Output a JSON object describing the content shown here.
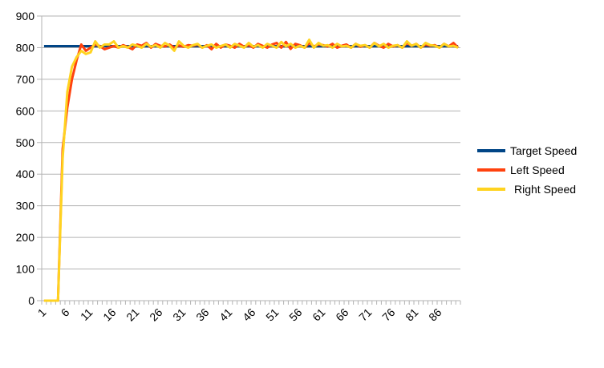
{
  "chart_data": {
    "type": "line",
    "title": "",
    "xlabel": "",
    "ylabel": "",
    "x_start": 1,
    "x_end": 90,
    "x_tick_labels": [
      "1",
      "6",
      "11",
      "16",
      "21",
      "26",
      "31",
      "36",
      "41",
      "46",
      "51",
      "56",
      "61",
      "66",
      "71",
      "76",
      "81",
      "86"
    ],
    "ylim": [
      0,
      900
    ],
    "y_tick_labels": [
      "0",
      "100",
      "200",
      "300",
      "400",
      "500",
      "600",
      "700",
      "800",
      "900"
    ],
    "grid": "horizontal",
    "legend": "right",
    "series": [
      {
        "name": "Target Speed",
        "color": "#004586",
        "values": [
          805,
          805,
          805,
          805,
          805,
          805,
          805,
          805,
          805,
          805,
          805,
          805,
          805,
          805,
          805,
          805,
          805,
          805,
          805,
          805,
          805,
          805,
          805,
          805,
          805,
          805,
          805,
          805,
          805,
          805,
          805,
          805,
          805,
          805,
          805,
          805,
          805,
          805,
          805,
          805,
          805,
          805,
          805,
          805,
          805,
          805,
          805,
          805,
          805,
          805,
          805,
          805,
          805,
          805,
          805,
          805,
          805,
          805,
          805,
          805,
          805,
          805,
          805,
          805,
          805,
          805,
          805,
          805,
          805,
          805,
          805,
          805,
          805,
          805,
          805,
          805,
          805,
          805,
          805,
          805,
          805,
          805,
          805,
          805,
          805,
          805,
          805,
          805,
          805,
          805
        ]
      },
      {
        "name": "Left Speed",
        "color": "#ff420e",
        "values": [
          0,
          0,
          0,
          0,
          480,
          610,
          700,
          760,
          810,
          790,
          800,
          810,
          805,
          795,
          800,
          805,
          800,
          808,
          802,
          795,
          810,
          806,
          815,
          800,
          812,
          806,
          804,
          810,
          800,
          807,
          803,
          808,
          806,
          810,
          800,
          808,
          795,
          812,
          800,
          810,
          806,
          800,
          812,
          803,
          808,
          800,
          812,
          806,
          800,
          810,
          815,
          800,
          818,
          796,
          812,
          808,
          800,
          815,
          804,
          810,
          808,
          804,
          812,
          800,
          806,
          810,
          800,
          812,
          803,
          808,
          800,
          815,
          806,
          800,
          812,
          804,
          808,
          800,
          815,
          806,
          812,
          800,
          810,
          806,
          808,
          800,
          812,
          804,
          815,
          800
        ]
      },
      {
        "name": "Right Speed",
        "color": "#ffd320",
        "values": [
          0,
          0,
          0,
          0,
          450,
          660,
          740,
          770,
          790,
          780,
          785,
          820,
          800,
          810,
          810,
          820,
          800,
          805,
          800,
          810,
          806,
          800,
          812,
          803,
          808,
          800,
          815,
          806,
          790,
          820,
          806,
          800,
          808,
          812,
          800,
          806,
          810,
          800,
          805,
          810,
          800,
          812,
          806,
          800,
          815,
          803,
          808,
          800,
          812,
          806,
          800,
          818,
          804,
          812,
          800,
          806,
          800,
          825,
          800,
          815,
          806,
          808,
          800,
          812,
          804,
          806,
          800,
          812,
          806,
          808,
          800,
          815,
          804,
          812,
          800,
          806,
          808,
          800,
          820,
          806,
          812,
          800,
          815,
          808,
          806,
          800,
          812,
          804,
          806,
          800
        ]
      }
    ]
  }
}
